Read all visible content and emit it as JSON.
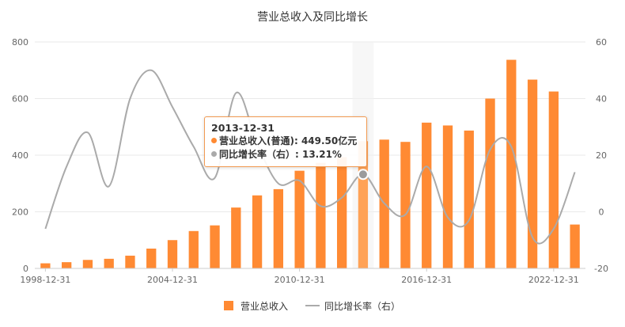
{
  "chart_data": {
    "type": "bar",
    "title": "营业总收入及同比增长",
    "x": [
      "1998-12-31",
      "1999-12-31",
      "2000-12-31",
      "2001-12-31",
      "2002-12-31",
      "2003-12-31",
      "2004-12-31",
      "2005-12-31",
      "2006-12-31",
      "2007-12-31",
      "2008-12-31",
      "2009-12-31",
      "2010-12-31",
      "2011-12-31",
      "2012-12-31",
      "2013-12-31",
      "2014-12-31",
      "2015-12-31",
      "2016-12-31",
      "2017-12-31",
      "2018-12-31",
      "2019-12-31",
      "2020-12-31",
      "2021-12-31",
      "2022-12-31",
      "2023-03-31"
    ],
    "x_tick_labels": [
      "1998-12-31",
      "2004-12-31",
      "2010-12-31",
      "2016-12-31",
      "2022-12-31"
    ],
    "series": [
      {
        "name": "营业总收入",
        "type": "bar",
        "axis": "left",
        "color": "#ff8a33",
        "values": [
          18,
          22,
          30,
          34,
          45,
          70,
          100,
          132,
          152,
          215,
          258,
          280,
          345,
          373,
          393,
          449.5,
          455,
          447,
          515,
          505,
          487,
          600,
          737,
          667,
          625,
          155
        ]
      },
      {
        "name": "同比增长率（右）",
        "type": "line",
        "axis": "right",
        "color": "#aaaaaa",
        "values": [
          -6,
          16,
          28,
          9,
          40,
          50,
          37,
          23,
          12,
          42,
          24,
          10,
          11,
          2,
          5,
          13.21,
          3,
          -1,
          16,
          -2,
          -3,
          22,
          23,
          -9,
          -6,
          14
        ]
      }
    ],
    "y_left": {
      "ticks": [
        0,
        200,
        400,
        600,
        800
      ],
      "ylim": [
        0,
        800
      ]
    },
    "y_right": {
      "ticks": [
        -20,
        0,
        20,
        40,
        60
      ],
      "ylim": [
        -20,
        60
      ]
    },
    "legend": {
      "position": "bottom",
      "items": [
        "营业总收入",
        "同比增长率（右）"
      ]
    },
    "highlight_index": 15,
    "grid": true
  },
  "tooltip": {
    "date": "2013-12-31",
    "line1": "营业总收入(普通): 449.50亿元",
    "line2": "同比增长率（右）: 13.21%"
  }
}
